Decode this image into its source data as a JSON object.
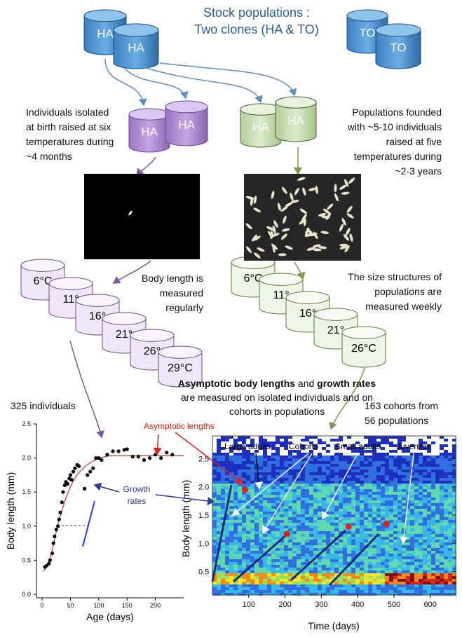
{
  "header": {
    "title": [
      "Stock populations :",
      "Two clones (HA & TO)"
    ]
  },
  "stock": {
    "ha": [
      "HA",
      "HA"
    ],
    "to": [
      "TO",
      "TO"
    ]
  },
  "individuals": {
    "cylinders": [
      "HA",
      "HA"
    ],
    "description": [
      "Individuals isolated",
      "at birth raised at six",
      "temperatures during",
      "~4 months"
    ],
    "measure": [
      "Body length is",
      "measured",
      "regularly"
    ],
    "temperatures": [
      "6°C",
      "11°",
      "16°",
      "21°",
      "26°",
      "29°C"
    ],
    "count": "325 individuals"
  },
  "populations": {
    "cylinders": [
      "HA",
      "HA"
    ],
    "description": [
      "Populations founded",
      "with ~5-10 individuals",
      "raised at five",
      "temperatures during",
      "~2-3 years"
    ],
    "measure": [
      "The size structures of",
      "populations are",
      "measured weekly"
    ],
    "temperatures": [
      "6°C",
      "11°",
      "16°",
      "21°",
      "26°C"
    ],
    "count": [
      "163 cohorts from",
      "56 populations"
    ]
  },
  "summary": {
    "bold1": "Asymptotic body lengths",
    "mid": " and ",
    "bold2": "growth rates",
    "line2": "are measured on isolated individuals and on",
    "line3": "cohorts in populations"
  },
  "growth_plot": {
    "xlabel": "Age (days)",
    "ylabel": "Body length (mm)",
    "xlim": [
      -10,
      250
    ],
    "ylim": [
      0,
      2.5
    ],
    "xticks": [
      0,
      50,
      100,
      150,
      200
    ],
    "yticks": [
      {
        "value": 0,
        "label": "0.0"
      },
      0.5,
      {
        "value": 1,
        "label": "1.0"
      },
      1.5,
      {
        "value": 2,
        "label": "2.0"
      },
      2.5
    ],
    "x": [
      5,
      8,
      12,
      14,
      18,
      20,
      22,
      25,
      28,
      30,
      32,
      35,
      37,
      40,
      42,
      45,
      48,
      50,
      52,
      55,
      58,
      62,
      65,
      75,
      80,
      85,
      90,
      95,
      100,
      105,
      115,
      125,
      135,
      145,
      150,
      160,
      170,
      180,
      190,
      200,
      210,
      220,
      230
    ],
    "y": [
      0.4,
      0.42,
      0.45,
      0.5,
      0.6,
      0.75,
      0.85,
      0.95,
      1.0,
      1.1,
      1.2,
      1.35,
      1.5,
      1.6,
      1.65,
      1.62,
      1.7,
      1.75,
      1.68,
      1.8,
      1.85,
      1.9,
      1.88,
      1.55,
      1.75,
      1.8,
      1.85,
      2.0,
      2.0,
      1.97,
      2.05,
      2.1,
      2.1,
      2.12,
      2.13,
      2.02,
      2.02,
      1.97,
      2.0,
      2.05,
      2.0,
      2.08,
      2.05
    ]
  },
  "annotations": {
    "asymptotic": "Asymptotic lengths",
    "growth": [
      "Growth",
      "rates"
    ]
  },
  "cohort_plot": {
    "xlabel": "Time (days)",
    "ylabel": "Body length (mm)",
    "xlim": [
      0,
      670
    ],
    "ylim": [
      0.1,
      2.9
    ],
    "xticks": [
      100,
      200,
      300,
      400,
      500,
      600
    ],
    "yticks": [
      0.5,
      {
        "value": 1,
        "label": "1.0"
      },
      1.5,
      {
        "value": 2,
        "label": "2.0"
      },
      2.5
    ],
    "labels": [
      "Large adults",
      "Cohorts",
      "Small adults",
      "Juveniles"
    ],
    "asymptote_x": [
      90,
      205,
      375,
      480
    ],
    "asymptote_y": [
      1.95,
      1.17,
      1.3,
      1.35
    ]
  }
}
